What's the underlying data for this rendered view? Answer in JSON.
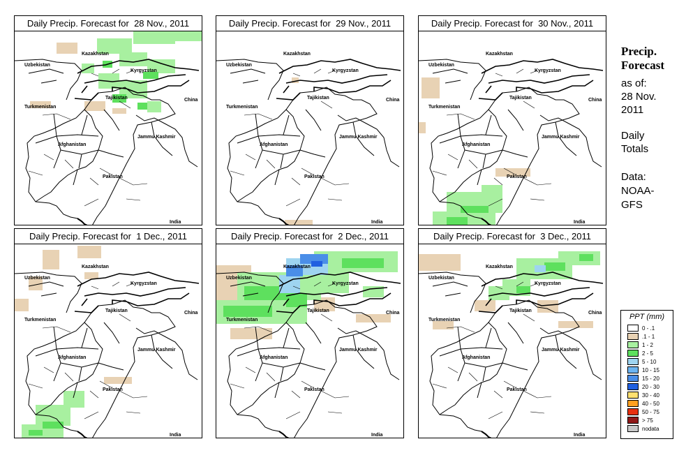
{
  "panels": [
    {
      "title": "Daily Precip. Forecast for  28 Nov., 2011"
    },
    {
      "title": "Daily Precip. Forecast for  29 Nov., 2011"
    },
    {
      "title": "Daily Precip. Forecast for  30 Nov., 2011"
    },
    {
      "title": "Daily Precip. Forecast for  1 Dec., 2011"
    },
    {
      "title": "Daily Precip. Forecast for  2 Dec., 2011"
    },
    {
      "title": "Daily Precip. Forecast for  3 Dec., 2011"
    }
  ],
  "map_labels": {
    "kazakhstan": "Kazakhstan",
    "uzbekistan": "Uzbekistan",
    "kyrgyzstan": "Kyrgyzstan",
    "tajikistan": "Tajikistan",
    "turkmenistan": "Turkmenistan",
    "china": "China",
    "jammu_kashmir": "Jammu Kashmir",
    "afghanistan": "Afghanistan",
    "pakistan": "Pakistan",
    "india": "India"
  },
  "sidebar": {
    "title_line1": "Precip.",
    "title_line2": "Forecast",
    "asof_line1": "as of:",
    "asof_line2": "28 Nov.",
    "asof_line3": "2011",
    "totals_line1": "Daily",
    "totals_line2": "Totals",
    "data_line1": "Data:",
    "data_line2": "NOAA-",
    "data_line3": "GFS"
  },
  "legend": {
    "title": "PPT (mm)",
    "items": [
      {
        "label": "0 - .1",
        "color": "#ffffff"
      },
      {
        "label": ".1 - 1",
        "color": "#e8d2b4"
      },
      {
        "label": "1 - 2",
        "color": "#a8f0a0"
      },
      {
        "label": "2 - 5",
        "color": "#5ee05e"
      },
      {
        "label": "5 - 10",
        "color": "#9ed4f0"
      },
      {
        "label": "10 - 15",
        "color": "#6cb4f0"
      },
      {
        "label": "15 - 20",
        "color": "#4a8ee8"
      },
      {
        "label": "20 - 30",
        "color": "#2060e0"
      },
      {
        "label": "30 - 40",
        "color": "#ffe070"
      },
      {
        "label": "40 - 50",
        "color": "#ffa020"
      },
      {
        "label": "50 - 75",
        "color": "#e83010"
      },
      {
        "label": "> 75",
        "color": "#901818"
      },
      {
        "label": "nodata",
        "color": "#c8c8c8"
      }
    ]
  },
  "colors": {
    "border": "#000000",
    "tan": "#e8d2b4",
    "light_green": "#a8f0a0",
    "green": "#5ee05e",
    "light_blue": "#9ed4f0",
    "blue": "#4a8ee8"
  }
}
